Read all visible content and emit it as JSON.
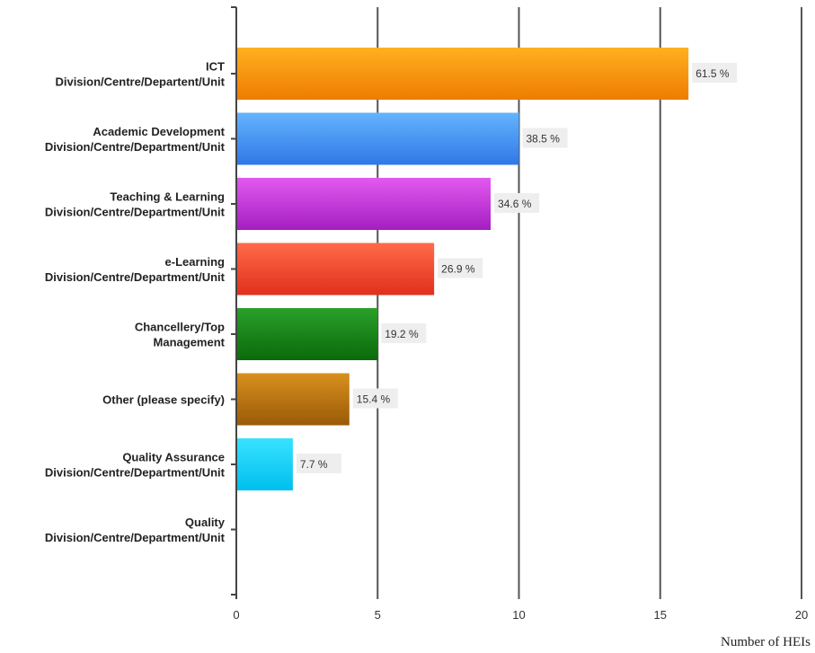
{
  "chart_data": {
    "type": "bar",
    "orientation": "horizontal",
    "title": "",
    "xlabel": "Number of HEIs",
    "ylabel": "",
    "xlim": [
      0,
      20
    ],
    "xticks": [
      0,
      5,
      10,
      15,
      20
    ],
    "grid": true,
    "categories": [
      [
        "ICT",
        "Division/Centre/Departent/Unit"
      ],
      [
        "Academic Development",
        "Division/Centre/Department/Unit"
      ],
      [
        "Teaching & Learning",
        "Division/Centre/Department/Unit"
      ],
      [
        "e-Learning",
        "Division/Centre/Department/Unit"
      ],
      [
        "Chancellery/Top",
        "Management"
      ],
      [
        "Other (please specify)"
      ],
      [
        "Quality Assurance",
        "Division/Centre/Department/Unit"
      ],
      [
        "Quality",
        "Division/Centre/Department/Unit"
      ]
    ],
    "values": [
      16,
      10,
      9,
      7,
      5,
      4,
      2,
      0
    ],
    "data_labels": [
      "61.5 %",
      "38.5 %",
      "34.6 %",
      "26.9 %",
      "19.2 %",
      "15.4 %",
      "7.7 %",
      ""
    ],
    "colors": [
      [
        "#ffb020",
        "#ee7c00"
      ],
      [
        "#64b4ff",
        "#2f78e6"
      ],
      [
        "#e35af0",
        "#a41ec0"
      ],
      [
        "#ff6a4a",
        "#e0301c"
      ],
      [
        "#2aa02a",
        "#0a6a0a"
      ],
      [
        "#d8901e",
        "#9a5a08"
      ],
      [
        "#38e2ff",
        "#00bfee"
      ],
      [
        "#cccccc",
        "#999999"
      ]
    ]
  }
}
